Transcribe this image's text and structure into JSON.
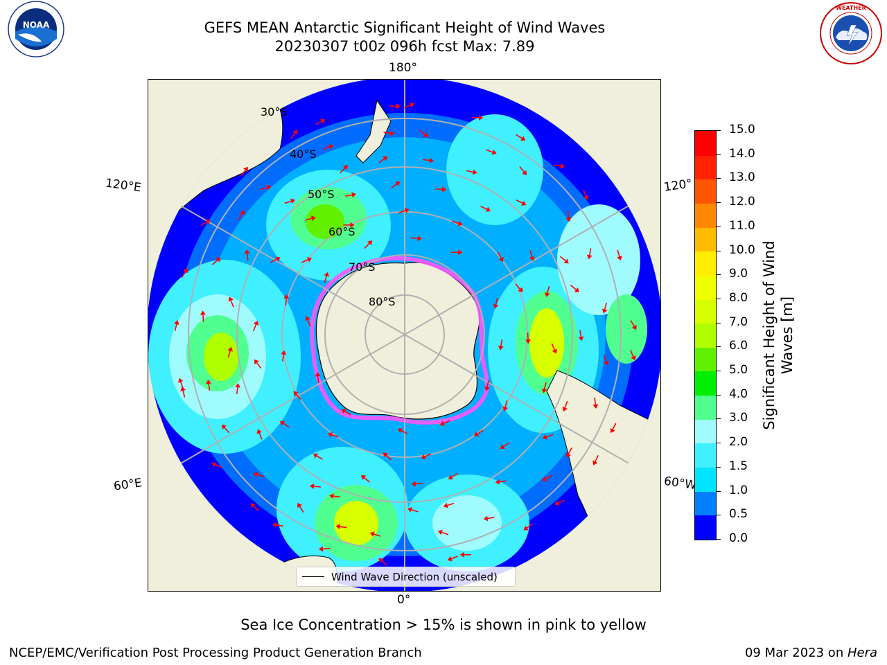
{
  "header": {
    "title_line1": "GEFS MEAN Antarctic Significant Height of Wind Waves",
    "title_line2": "20230307 t00z 096h fcst   Max: 7.89"
  },
  "logos": {
    "left": "NOAA",
    "right": "NATIONAL WEATHER SERVICE"
  },
  "map": {
    "projection": "south-polar-stereographic",
    "longitude_labels": [
      "180°",
      "120°E",
      "120°",
      "60°E",
      "60°W",
      "0°"
    ],
    "latitude_labels": [
      "30°S",
      "40°S",
      "50°S",
      "60°S",
      "70°S",
      "80°S"
    ],
    "colors": {
      "land": "#efefdb",
      "grid": "#b0b0b0",
      "arrow": "#ff0000",
      "sea_ice": "#ff55ff"
    },
    "legend_label": "Wind Wave Direction (unscaled)"
  },
  "colorbar": {
    "title_line1": "Significant Height of Wind",
    "title_line2": "Waves [m]",
    "tick_labels": [
      "0.0",
      "0.5",
      "1.0",
      "1.5",
      "2.0",
      "3.0",
      "4.0",
      "5.0",
      "6.0",
      "7.0",
      "8.0",
      "9.0",
      "10.0",
      "11.0",
      "12.0",
      "13.0",
      "14.0",
      "15.0"
    ],
    "colors": [
      "#0000ff",
      "#0080ff",
      "#00e5ff",
      "#40f0ff",
      "#a0fbff",
      "#50ff90",
      "#00ee00",
      "#60f000",
      "#b0ff00",
      "#d8ff00",
      "#f0ff00",
      "#ffee00",
      "#ffbb00",
      "#ff8800",
      "#ff5500",
      "#ff2200",
      "#ff0000"
    ]
  },
  "notes": {
    "sea_ice": "Sea Ice Concentration > 15% is shown in pink to yellow"
  },
  "footer": {
    "left": "NCEP/EMC/Verification Post Processing Product Generation Branch",
    "right_prefix": "09 Mar 2023 on ",
    "right_system": "Hera"
  }
}
